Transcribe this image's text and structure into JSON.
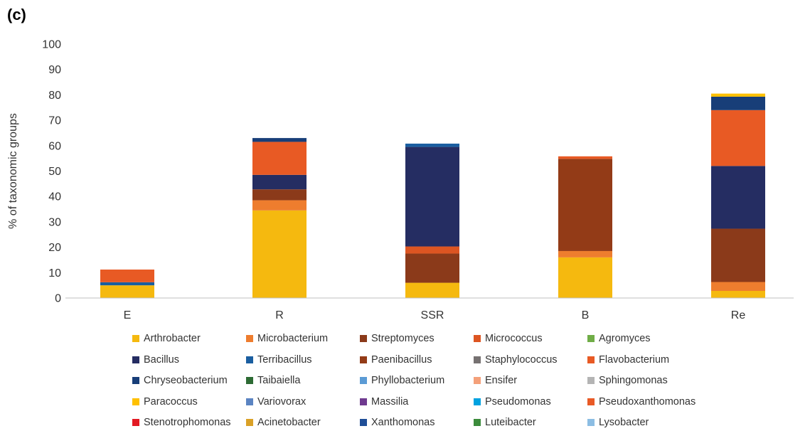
{
  "panel_label": "(c)",
  "chart_data": {
    "type": "bar",
    "stacked": true,
    "title": "",
    "xlabel": "",
    "ylabel": "% of taxonomic groups",
    "ylim": [
      0,
      100
    ],
    "yticks": [
      0,
      10,
      20,
      30,
      40,
      50,
      60,
      70,
      80,
      90,
      100
    ],
    "grid": false,
    "legend_position": "bottom",
    "categories": [
      "E",
      "R",
      "SSR",
      "B",
      "Re"
    ],
    "series": [
      {
        "name": "Arthrobacter",
        "color": "#F5B90F",
        "values": [
          5,
          34.5,
          6,
          16,
          2.8
        ]
      },
      {
        "name": "Microbacterium",
        "color": "#EE7D2E",
        "values": [
          0,
          4,
          0,
          2.5,
          3.5
        ]
      },
      {
        "name": "Streptomyces",
        "color": "#8B3A1A",
        "values": [
          0,
          4.3,
          11.5,
          0,
          21
        ]
      },
      {
        "name": "Micrococcus",
        "color": "#DD5522",
        "values": [
          0,
          0,
          2.8,
          0,
          0
        ]
      },
      {
        "name": "Agromyces",
        "color": "#70AD47",
        "values": [
          0,
          0,
          0,
          0,
          0
        ]
      },
      {
        "name": "Bacillus",
        "color": "#252D62",
        "values": [
          0,
          5.7,
          39.2,
          0,
          24.7
        ]
      },
      {
        "name": "Terribacillus",
        "color": "#1A5EA0",
        "values": [
          1.2,
          0,
          1.3,
          0,
          0
        ]
      },
      {
        "name": "Paenibacillus",
        "color": "#933B17",
        "values": [
          0,
          0,
          0,
          36.3,
          0
        ]
      },
      {
        "name": "Staphylococcus",
        "color": "#767171",
        "values": [
          0,
          0,
          0,
          0,
          0
        ]
      },
      {
        "name": "Flavobacterium",
        "color": "#E85A24",
        "values": [
          5,
          13,
          0,
          1,
          22
        ]
      },
      {
        "name": "Chryseobacterium",
        "color": "#183E78",
        "values": [
          0,
          1.5,
          0,
          0,
          5.3
        ]
      },
      {
        "name": "Taibaiella",
        "color": "#2D6B34",
        "values": [
          0,
          0,
          0,
          0,
          0
        ]
      },
      {
        "name": "Phyllobacterium",
        "color": "#5B9BD5",
        "values": [
          0,
          0,
          0,
          0,
          0
        ]
      },
      {
        "name": "Ensifer",
        "color": "#F4A07A",
        "values": [
          0,
          0,
          0,
          0,
          0
        ]
      },
      {
        "name": "Sphingomonas",
        "color": "#B4B4B4",
        "values": [
          0,
          0,
          0,
          0,
          0
        ]
      },
      {
        "name": "Paracoccus",
        "color": "#FFC000",
        "values": [
          0,
          0,
          0,
          0,
          1.2
        ]
      },
      {
        "name": "Variovorax",
        "color": "#5B84C2",
        "values": [
          0,
          0,
          0,
          0,
          0
        ]
      },
      {
        "name": "Massilia",
        "color": "#6F3A8F",
        "values": [
          0,
          0,
          0,
          0,
          0
        ]
      },
      {
        "name": "Pseudomonas",
        "color": "#00A2E0",
        "values": [
          0,
          0,
          0,
          0,
          0
        ]
      },
      {
        "name": "Pseudoxanthomonas",
        "color": "#E95A26",
        "values": [
          0,
          0,
          0,
          0,
          0
        ]
      },
      {
        "name": "Stenotrophomonas",
        "color": "#E31A23",
        "values": [
          0,
          0,
          0,
          0,
          0
        ]
      },
      {
        "name": "Acinetobacter",
        "color": "#DAA127",
        "values": [
          0,
          0,
          0,
          0,
          0
        ]
      },
      {
        "name": "Xanthomonas",
        "color": "#1F4E97",
        "values": [
          0,
          0,
          0,
          0,
          0
        ]
      },
      {
        "name": "Luteibacter",
        "color": "#3C8C3C",
        "values": [
          0,
          0,
          0,
          0,
          0
        ]
      },
      {
        "name": "Lysobacter",
        "color": "#8CBDE3",
        "values": [
          0,
          0,
          0,
          0,
          0
        ]
      }
    ]
  }
}
